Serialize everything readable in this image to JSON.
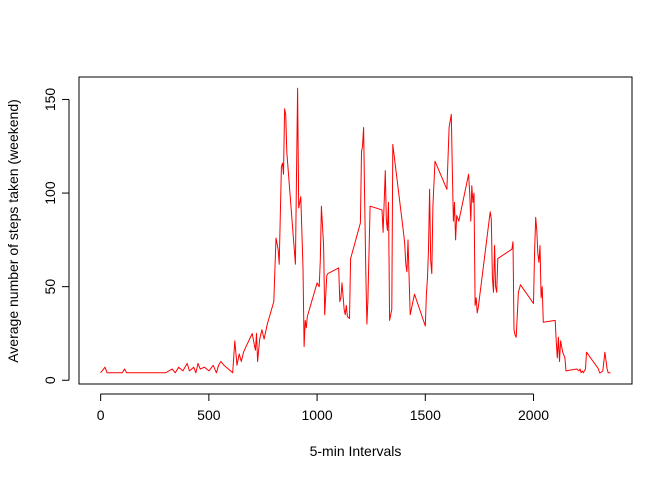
{
  "chart_data": {
    "type": "line",
    "title": "",
    "xlabel": "5-min Intervals",
    "ylabel": "Average number of steps taken (weekend)",
    "xlim": [
      -100,
      2455
    ],
    "ylim": [
      -2,
      162
    ],
    "xticks": [
      0,
      500,
      1000,
      1500,
      2000
    ],
    "yticks": [
      0,
      50,
      100,
      150
    ],
    "grid": false,
    "legend": "none",
    "series": [
      {
        "color": "#ff0000",
        "points": [
          [
            0,
            4
          ],
          [
            20,
            7
          ],
          [
            30,
            4
          ],
          [
            100,
            4
          ],
          [
            110,
            6
          ],
          [
            120,
            4
          ],
          [
            200,
            4
          ],
          [
            300,
            4
          ],
          [
            330,
            6
          ],
          [
            345,
            4
          ],
          [
            360,
            7
          ],
          [
            380,
            5
          ],
          [
            400,
            9
          ],
          [
            410,
            5
          ],
          [
            430,
            7
          ],
          [
            440,
            4
          ],
          [
            450,
            9
          ],
          [
            460,
            6
          ],
          [
            480,
            7
          ],
          [
            500,
            5
          ],
          [
            520,
            8
          ],
          [
            535,
            4
          ],
          [
            545,
            8
          ],
          [
            555,
            10
          ],
          [
            570,
            8
          ],
          [
            590,
            6
          ],
          [
            600,
            5
          ],
          [
            610,
            4
          ],
          [
            620,
            21
          ],
          [
            630,
            8
          ],
          [
            640,
            14
          ],
          [
            650,
            10
          ],
          [
            660,
            15
          ],
          [
            680,
            20
          ],
          [
            700,
            25
          ],
          [
            715,
            16
          ],
          [
            720,
            25
          ],
          [
            725,
            10
          ],
          [
            735,
            22
          ],
          [
            745,
            27
          ],
          [
            755,
            22
          ],
          [
            770,
            30
          ],
          [
            800,
            42
          ],
          [
            810,
            76
          ],
          [
            820,
            70
          ],
          [
            825,
            62
          ],
          [
            835,
            114
          ],
          [
            840,
            116
          ],
          [
            845,
            110
          ],
          [
            850,
            145
          ],
          [
            855,
            142
          ],
          [
            860,
            122
          ],
          [
            900,
            62
          ],
          [
            910,
            156
          ],
          [
            915,
            92
          ],
          [
            925,
            98
          ],
          [
            935,
            60
          ],
          [
            940,
            18
          ],
          [
            945,
            32
          ],
          [
            950,
            28
          ],
          [
            955,
            34
          ],
          [
            1000,
            52
          ],
          [
            1010,
            50
          ],
          [
            1015,
            64
          ],
          [
            1020,
            93
          ],
          [
            1030,
            72
          ],
          [
            1035,
            35
          ],
          [
            1045,
            56
          ],
          [
            1050,
            57
          ],
          [
            1100,
            60
          ],
          [
            1105,
            42
          ],
          [
            1110,
            44
          ],
          [
            1115,
            52
          ],
          [
            1125,
            38
          ],
          [
            1130,
            35
          ],
          [
            1135,
            40
          ],
          [
            1140,
            34
          ],
          [
            1150,
            33
          ],
          [
            1155,
            65
          ],
          [
            1200,
            84
          ],
          [
            1205,
            122
          ],
          [
            1210,
            125
          ],
          [
            1215,
            135
          ],
          [
            1220,
            95
          ],
          [
            1225,
            58
          ],
          [
            1230,
            30
          ],
          [
            1235,
            43
          ],
          [
            1245,
            93
          ],
          [
            1300,
            91
          ],
          [
            1305,
            79
          ],
          [
            1315,
            112
          ],
          [
            1320,
            86
          ],
          [
            1325,
            80
          ],
          [
            1330,
            95
          ],
          [
            1335,
            32
          ],
          [
            1345,
            38
          ],
          [
            1350,
            126
          ],
          [
            1400,
            78
          ],
          [
            1405,
            73
          ],
          [
            1410,
            62
          ],
          [
            1415,
            58
          ],
          [
            1420,
            75
          ],
          [
            1425,
            55
          ],
          [
            1430,
            35
          ],
          [
            1450,
            46
          ],
          [
            1500,
            29
          ],
          [
            1505,
            46
          ],
          [
            1510,
            55
          ],
          [
            1515,
            70
          ],
          [
            1520,
            102
          ],
          [
            1525,
            64
          ],
          [
            1530,
            57
          ],
          [
            1535,
            93
          ],
          [
            1545,
            117
          ],
          [
            1600,
            102
          ],
          [
            1610,
            135
          ],
          [
            1620,
            142
          ],
          [
            1625,
            110
          ],
          [
            1630,
            85
          ],
          [
            1635,
            95
          ],
          [
            1640,
            75
          ],
          [
            1645,
            88
          ],
          [
            1655,
            85
          ],
          [
            1700,
            110
          ],
          [
            1705,
            100
          ],
          [
            1710,
            85
          ],
          [
            1715,
            104
          ],
          [
            1720,
            95
          ],
          [
            1725,
            100
          ],
          [
            1730,
            40
          ],
          [
            1735,
            44
          ],
          [
            1740,
            36
          ],
          [
            1745,
            39
          ],
          [
            1800,
            90
          ],
          [
            1805,
            86
          ],
          [
            1810,
            55
          ],
          [
            1815,
            47
          ],
          [
            1820,
            72
          ],
          [
            1825,
            50
          ],
          [
            1830,
            47
          ],
          [
            1835,
            65
          ],
          [
            1900,
            70
          ],
          [
            1905,
            74
          ],
          [
            1910,
            27
          ],
          [
            1915,
            24
          ],
          [
            1920,
            23
          ],
          [
            1930,
            47
          ],
          [
            1940,
            51
          ],
          [
            2000,
            41
          ],
          [
            2005,
            69
          ],
          [
            2010,
            87
          ],
          [
            2015,
            80
          ],
          [
            2020,
            68
          ],
          [
            2025,
            63
          ],
          [
            2030,
            72
          ],
          [
            2035,
            44
          ],
          [
            2040,
            50
          ],
          [
            2045,
            31
          ],
          [
            2100,
            32
          ],
          [
            2105,
            21
          ],
          [
            2110,
            12
          ],
          [
            2115,
            23
          ],
          [
            2120,
            10
          ],
          [
            2125,
            21
          ],
          [
            2135,
            15
          ],
          [
            2145,
            12
          ],
          [
            2150,
            5
          ],
          [
            2200,
            6
          ],
          [
            2210,
            5
          ],
          [
            2215,
            6
          ],
          [
            2220,
            4
          ],
          [
            2225,
            5
          ],
          [
            2230,
            4
          ],
          [
            2240,
            6
          ],
          [
            2245,
            15
          ],
          [
            2300,
            6
          ],
          [
            2305,
            4
          ],
          [
            2310,
            4
          ],
          [
            2320,
            5
          ],
          [
            2330,
            15
          ],
          [
            2340,
            6
          ],
          [
            2345,
            4
          ],
          [
            2350,
            4
          ],
          [
            2355,
            4
          ]
        ]
      }
    ]
  }
}
